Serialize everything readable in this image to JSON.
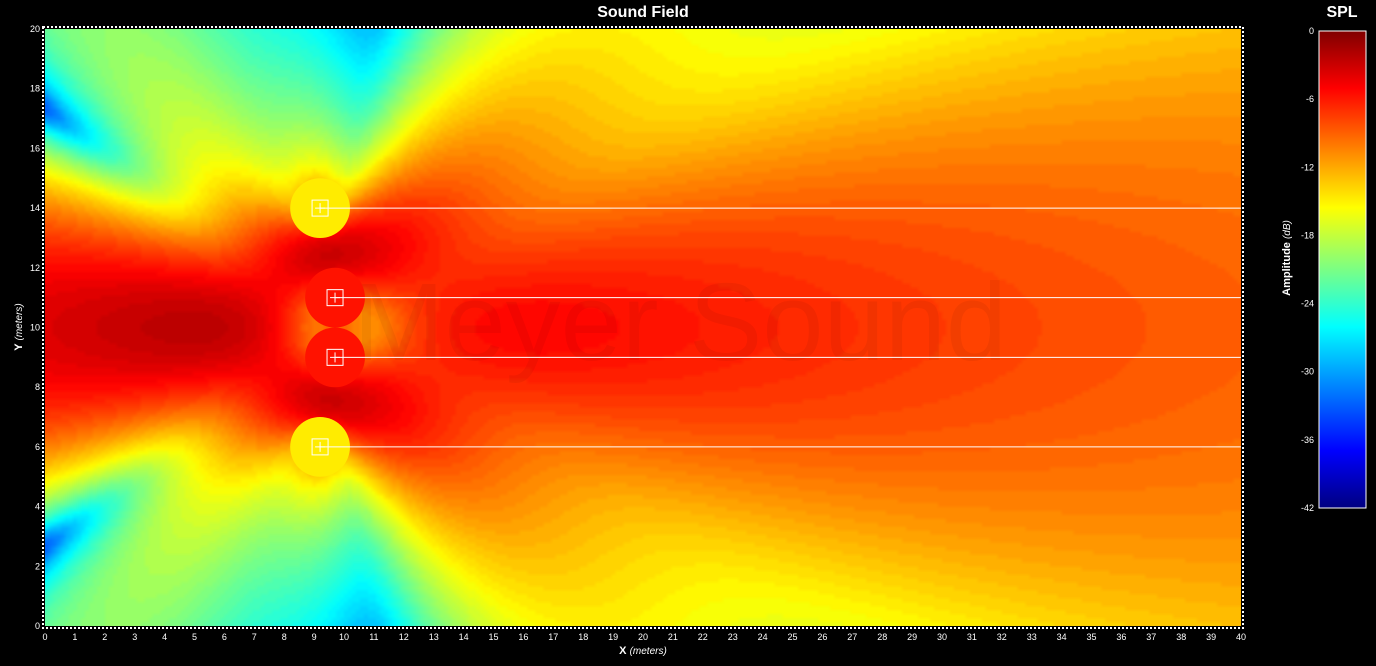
{
  "chart_data": {
    "type": "heatmap",
    "title": "Sound Field",
    "xlabel": "X",
    "xlabel_unit": "(meters)",
    "ylabel": "Y",
    "ylabel_unit": "(meters)",
    "xlim": [
      0,
      40
    ],
    "ylim": [
      0,
      20
    ],
    "x_ticks": [
      0,
      1,
      2,
      3,
      4,
      5,
      6,
      7,
      8,
      9,
      10,
      11,
      12,
      13,
      14,
      15,
      16,
      17,
      18,
      19,
      20,
      21,
      22,
      23,
      24,
      25,
      26,
      27,
      28,
      29,
      30,
      31,
      32,
      33,
      34,
      35,
      36,
      37,
      38,
      39,
      40
    ],
    "y_ticks": [
      0,
      2,
      4,
      6,
      8,
      10,
      12,
      14,
      16,
      18,
      20
    ],
    "colorbar": {
      "title": "SPL",
      "label": "Amplitude",
      "label_unit": "(dB)",
      "range": [
        -42,
        0
      ],
      "ticks": [
        0,
        -6,
        -12,
        -18,
        -24,
        -30,
        -36,
        -42
      ],
      "colormap": "jet"
    },
    "sources": [
      {
        "x": 9.2,
        "y": 14,
        "level_db": -15
      },
      {
        "x": 9.7,
        "y": 11,
        "level_db": -6
      },
      {
        "x": 9.7,
        "y": 9,
        "level_db": -6
      },
      {
        "x": 9.2,
        "y": 6,
        "level_db": -15
      }
    ],
    "watermark": "Meyer Sound"
  }
}
